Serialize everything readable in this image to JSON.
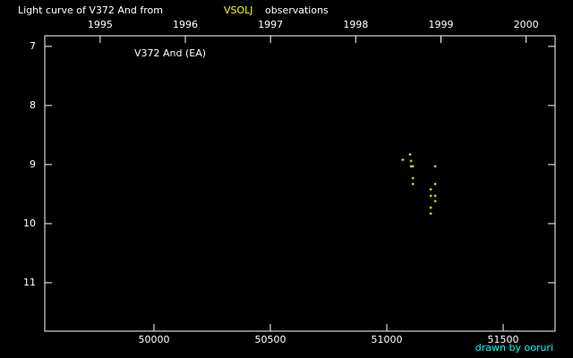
{
  "chart_data": {
    "type": "scatter",
    "title": "Light curve of V372 And from",
    "title_source": "VSOLJ",
    "title_suffix": "observations",
    "annotation": "V372 And (EA)",
    "credit": "drawn by ooruri",
    "x": [
      51069,
      51100,
      51104,
      51104,
      51112,
      51112,
      51112,
      51208,
      51208,
      51189,
      51208,
      51189,
      51208,
      51189,
      51189
    ],
    "values": [
      8.92,
      8.83,
      8.94,
      9.03,
      9.03,
      9.23,
      9.33,
      9.03,
      9.33,
      9.42,
      9.53,
      9.53,
      9.62,
      9.73,
      9.83
    ],
    "color": "#ffff00",
    "xlim": [
      49531,
      51723
    ],
    "xticks": [
      50000,
      50500,
      51000,
      51500
    ],
    "x2lim": [
      1994.35,
      2000.34
    ],
    "x2ticks": [
      1995,
      1996,
      1997,
      1998,
      1999,
      2000
    ],
    "ylim": [
      6.82,
      11.82
    ],
    "yticks": [
      7,
      8,
      9,
      10,
      11
    ],
    "y_inverted": true,
    "source_color": "#ffff00",
    "credit_color": "#00ffff"
  }
}
